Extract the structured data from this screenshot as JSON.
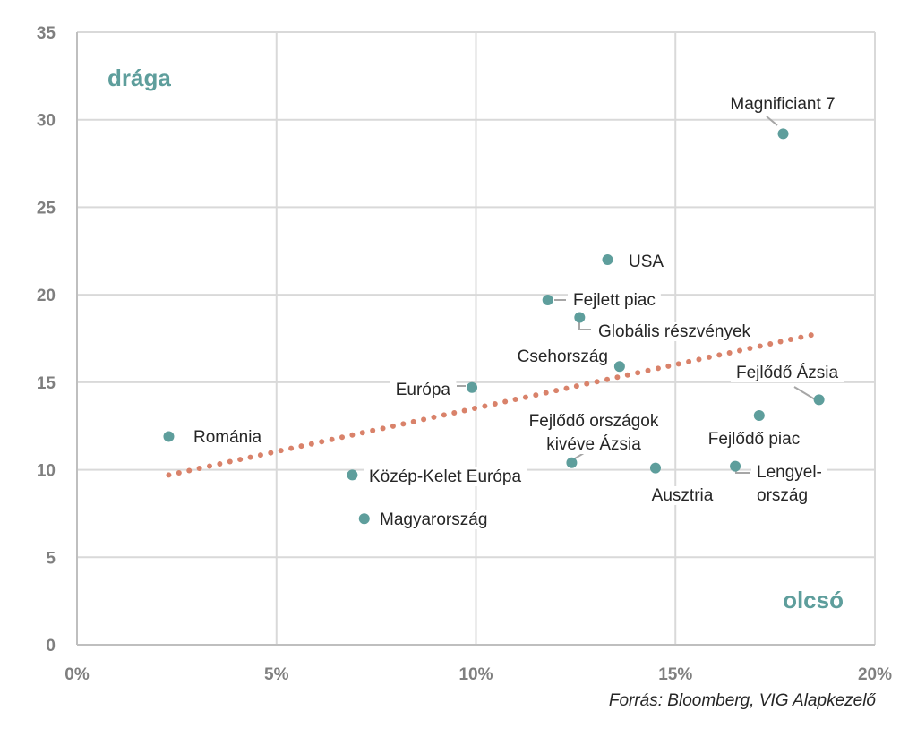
{
  "chart_data": {
    "type": "scatter",
    "title": "",
    "xlabel": "",
    "ylabel": "",
    "xlim": [
      0,
      20
    ],
    "ylim": [
      0,
      35
    ],
    "x_ticks": [
      0,
      5,
      10,
      15,
      20
    ],
    "x_tick_labels": [
      "0%",
      "5%",
      "10%",
      "15%",
      "20%"
    ],
    "y_ticks": [
      0,
      5,
      10,
      15,
      20,
      25,
      30,
      35
    ],
    "y_tick_labels": [
      "0",
      "5",
      "10",
      "15",
      "20",
      "25",
      "30",
      "35"
    ],
    "grid": true,
    "colors": {
      "points": "#5e9e9c",
      "trendline": "#d9826a",
      "corner_labels": "#5e9e9c",
      "grid": "#d9d9d9"
    },
    "points": [
      {
        "label": "Magnificiant 7",
        "x": 17.7,
        "y": 29.2
      },
      {
        "label": "USA",
        "x": 13.3,
        "y": 22.0
      },
      {
        "label": "Fejlett piac",
        "x": 11.8,
        "y": 19.7
      },
      {
        "label": "Globális részvények",
        "x": 12.6,
        "y": 18.7
      },
      {
        "label": "Csehország",
        "x": 13.6,
        "y": 15.9
      },
      {
        "label": "Európa",
        "x": 9.9,
        "y": 14.7
      },
      {
        "label": "Fejlődő Ázsia",
        "x": 18.6,
        "y": 14.0
      },
      {
        "label": "Fejlődő piac",
        "x": 17.1,
        "y": 13.1
      },
      {
        "label": "Románia",
        "x": 2.3,
        "y": 11.9
      },
      {
        "label": "Fejlődő országok kivéve Ázsia",
        "x": 12.4,
        "y": 10.4
      },
      {
        "label": "Lengyelország",
        "x": 16.5,
        "y": 10.2
      },
      {
        "label": "Ausztria",
        "x": 14.5,
        "y": 10.1
      },
      {
        "label": "Közép-Kelet Európa",
        "x": 6.9,
        "y": 9.7
      },
      {
        "label": "Magyarország",
        "x": 7.2,
        "y": 7.2
      }
    ],
    "trendline": {
      "type": "linear",
      "start": {
        "x": 2.3,
        "y": 9.7
      },
      "end": {
        "x": 18.4,
        "y": 17.7
      },
      "style": "dotted"
    },
    "annotations": [
      {
        "text": "drága",
        "position": "top-left"
      },
      {
        "text": "olcsó",
        "position": "bottom-right"
      }
    ],
    "source": "Forrás: Bloomberg, VIG Alapkezelő"
  }
}
